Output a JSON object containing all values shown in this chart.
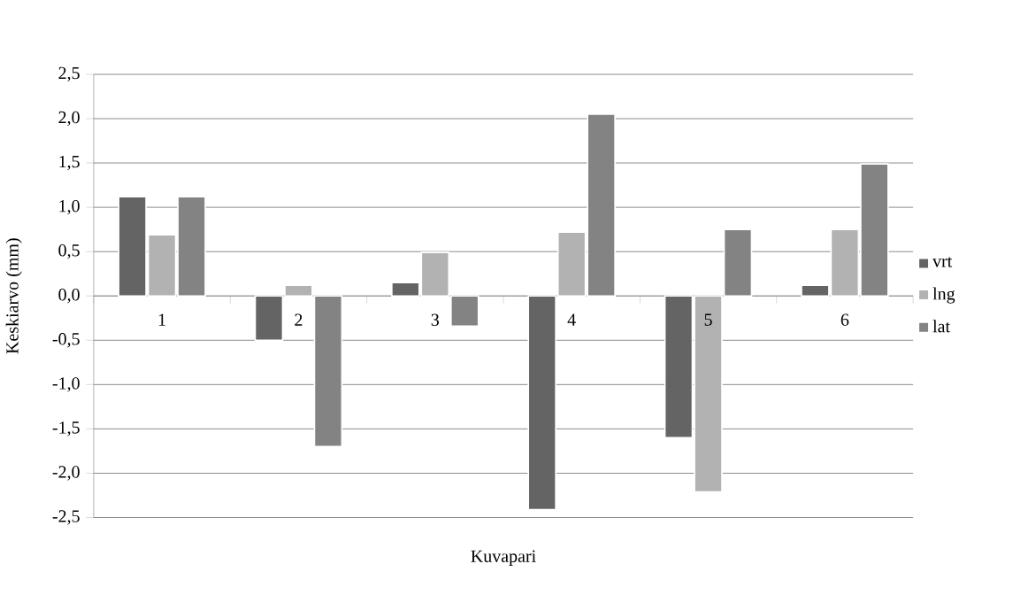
{
  "chart_data": {
    "type": "bar",
    "xlabel": "Kuvapari",
    "ylabel": "Keskiarvo (mm)",
    "categories": [
      "1",
      "2",
      "3",
      "4",
      "5",
      "6"
    ],
    "series": [
      {
        "name": "vrt",
        "color": "#646464",
        "values": [
          1.12,
          -0.5,
          0.15,
          -2.41,
          -1.6,
          0.12
        ]
      },
      {
        "name": "lng",
        "color": "#b2b2b2",
        "values": [
          0.69,
          0.12,
          0.49,
          0.72,
          -2.21,
          0.75
        ]
      },
      {
        "name": "lat",
        "color": "#838383",
        "values": [
          1.12,
          -1.7,
          -0.34,
          2.05,
          0.75,
          1.49
        ]
      }
    ],
    "ylim": [
      -2.5,
      2.5
    ],
    "yticks": [
      {
        "value": -2.5,
        "label": "-2,5"
      },
      {
        "value": -2.0,
        "label": "-2,0"
      },
      {
        "value": -1.5,
        "label": "-1,5"
      },
      {
        "value": -1.0,
        "label": "-1,0"
      },
      {
        "value": -0.5,
        "label": "-0,5"
      },
      {
        "value": 0,
        "label": "0,0"
      },
      {
        "value": 0.5,
        "label": "0,5"
      },
      {
        "value": 1.0,
        "label": "1,0"
      },
      {
        "value": 1.5,
        "label": "1,5"
      },
      {
        "value": 2.0,
        "label": "2,0"
      },
      {
        "value": 2.5,
        "label": "2,5"
      }
    ],
    "grid": "y",
    "legend": "right"
  }
}
